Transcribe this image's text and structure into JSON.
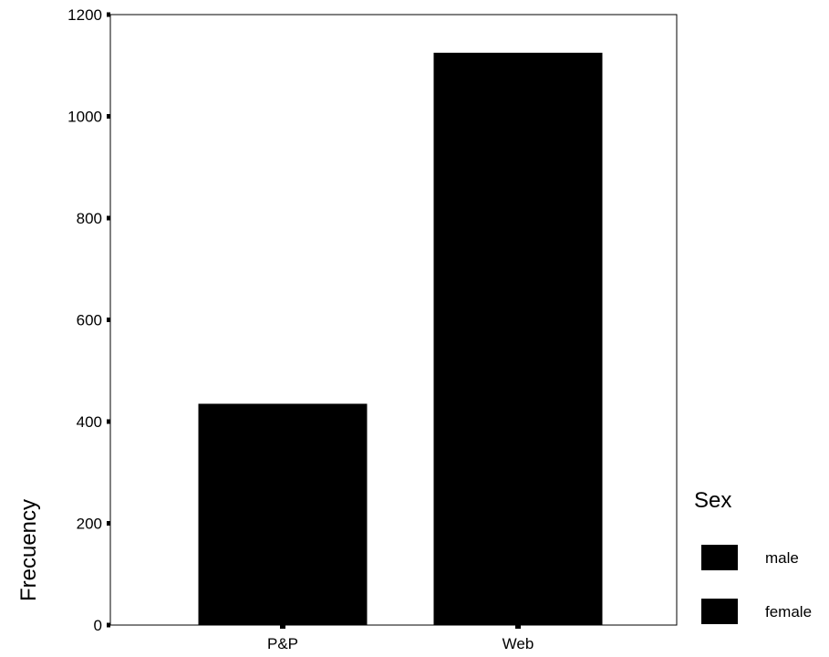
{
  "chart_data": {
    "type": "bar",
    "title": "",
    "xlabel": "",
    "ylabel": "Frecuency",
    "ylim": [
      0,
      1200
    ],
    "yticks": [
      0,
      200,
      400,
      600,
      800,
      1000,
      1200
    ],
    "categories": [
      "P&P",
      "Web"
    ],
    "values": [
      435,
      1125
    ],
    "grid": false,
    "bar_color": "#000000",
    "legend": {
      "title": "Sex",
      "placement": "right",
      "entries": [
        {
          "label": "male",
          "color": "#000000"
        },
        {
          "label": "female",
          "color": "#000000"
        }
      ]
    }
  }
}
